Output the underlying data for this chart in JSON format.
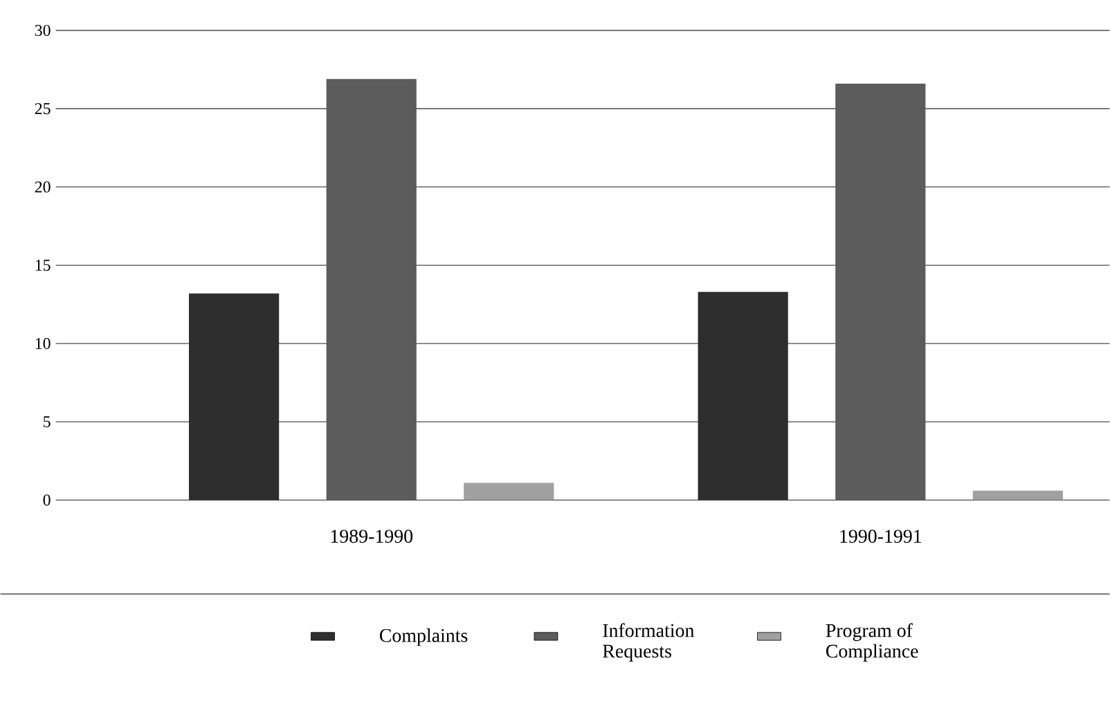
{
  "chart_data": {
    "type": "bar",
    "categories": [
      "1989-1990",
      "1990-1991"
    ],
    "series": [
      {
        "name": "Complaints",
        "color": "#2e2e2e",
        "values": [
          13.2,
          13.3
        ]
      },
      {
        "name": "Information Requests",
        "color": "#5c5c5c",
        "values": [
          26.9,
          26.6
        ]
      },
      {
        "name": "Program of Compliance",
        "color": "#a0a0a0",
        "values": [
          1.1,
          0.6
        ]
      }
    ],
    "ylim": [
      0,
      30
    ],
    "yticks": [
      0,
      5,
      10,
      15,
      20,
      25,
      30
    ],
    "grid": "y",
    "legend": "bottom"
  }
}
